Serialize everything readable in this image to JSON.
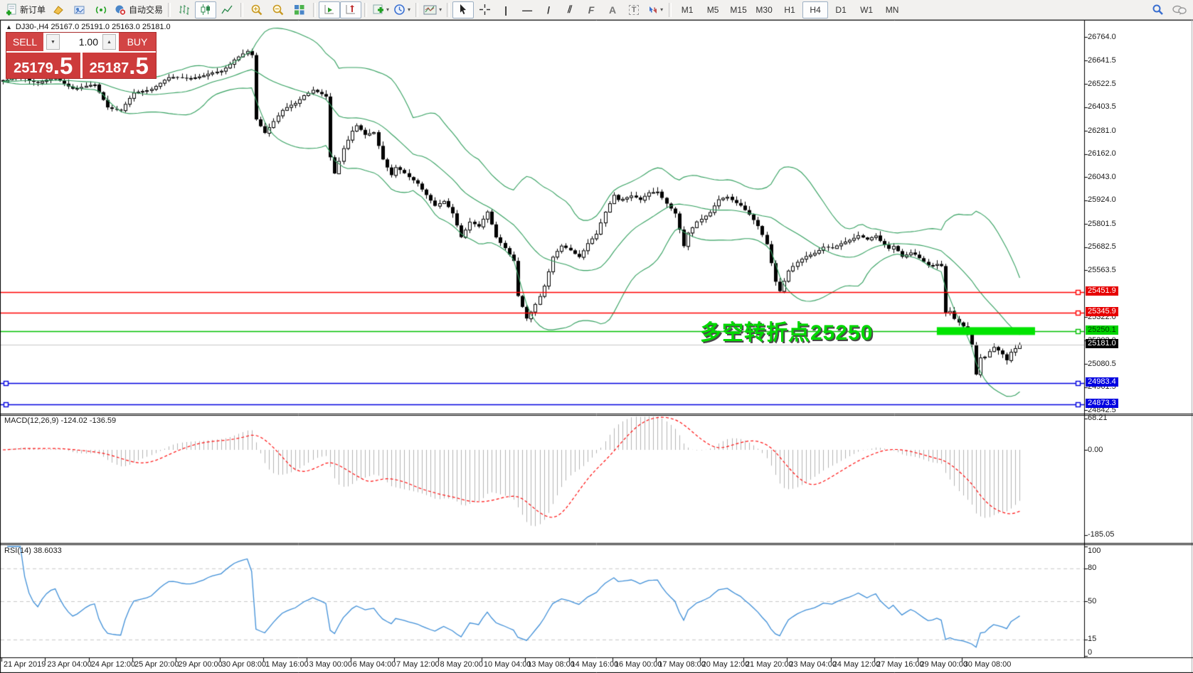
{
  "toolbar": {
    "new_order_label": "新订单",
    "auto_trading_label": "自动交易",
    "timeframes": [
      "M1",
      "M5",
      "M15",
      "M30",
      "H1",
      "H4",
      "D1",
      "W1",
      "MN"
    ],
    "active_timeframe": "H4",
    "glyph_vertical_line": "|",
    "glyph_horizontal_line": "—",
    "glyph_trendline": "/",
    "glyph_channel": "⫽",
    "glyph_fibo": "F",
    "glyph_text": "A",
    "glyph_text_label": "T"
  },
  "chart_header": {
    "collapse_icon": "▲",
    "title": "DJ30-,H4  25167.0 25191.0 25163.0 25181.0"
  },
  "trade_panel": {
    "sell_label": "SELL",
    "buy_label": "BUY",
    "volume": "1.00",
    "sell_price_main": "25179",
    "sell_price_big": ".5",
    "buy_price_main": "25187",
    "buy_price_big": ".5"
  },
  "annotation": {
    "text": "多空转折点25250"
  },
  "indicator_labels": {
    "macd": "MACD(12,26,9) -124.02 -136.59",
    "rsi": "RSI(14) 38.6033"
  },
  "chart_data": {
    "type": "candlestick",
    "symbol": "DJ30-",
    "timeframe": "H4",
    "title_ohlc": {
      "open": 25167.0,
      "high": 25191.0,
      "low": 25163.0,
      "close": 25181.0
    },
    "price_axis_ticks": [
      26764.0,
      26641.5,
      26522.5,
      26403.5,
      26281.0,
      26162.0,
      26043.0,
      25924.0,
      25801.5,
      25682.5,
      25563.5,
      25322.0,
      25202.0,
      25080.5,
      24961.5,
      24842.5
    ],
    "time_axis_labels": [
      "21 Apr 2019",
      "23 Apr 04:00",
      "24 Apr 12:00",
      "25 Apr 20:00",
      "29 Apr 00:00",
      "30 Apr 08:00",
      "1 May 16:00",
      "3 May 00:00",
      "6 May 04:00",
      "7 May 12:00",
      "8 May 20:00",
      "10 May 04:00",
      "13 May 08:00",
      "14 May 16:00",
      "16 May 00:00",
      "17 May 08:00",
      "20 May 12:00",
      "21 May 20:00",
      "23 May 04:00",
      "24 May 12:00",
      "27 May 16:00",
      "29 May 00:00",
      "30 May 08:00"
    ],
    "bars_per_time_label": 10,
    "bar_count": 234,
    "close_keypoints": [
      [
        0,
        26534
      ],
      [
        4,
        26552
      ],
      [
        8,
        26523
      ],
      [
        12,
        26545
      ],
      [
        16,
        26508
      ],
      [
        21,
        26523
      ],
      [
        24,
        26413
      ],
      [
        27,
        26387
      ],
      [
        30,
        26467
      ],
      [
        34,
        26493
      ],
      [
        38,
        26545
      ],
      [
        42,
        26560
      ],
      [
        46,
        26570
      ],
      [
        50,
        26600
      ],
      [
        53,
        26654
      ],
      [
        56,
        26683
      ],
      [
        57,
        26661
      ],
      [
        58,
        26332
      ],
      [
        60,
        26267
      ],
      [
        62,
        26325
      ],
      [
        64,
        26376
      ],
      [
        67,
        26420
      ],
      [
        69,
        26471
      ],
      [
        71,
        26500
      ],
      [
        74,
        26460
      ],
      [
        75,
        26149
      ],
      [
        76,
        26069
      ],
      [
        78,
        26204
      ],
      [
        80,
        26288
      ],
      [
        81,
        26310
      ],
      [
        83,
        26252
      ],
      [
        85,
        26267
      ],
      [
        87,
        26131
      ],
      [
        89,
        26047
      ],
      [
        90,
        26084
      ],
      [
        93,
        26033
      ],
      [
        95,
        26011
      ],
      [
        97,
        25959
      ],
      [
        99,
        25900
      ],
      [
        101,
        25922
      ],
      [
        103,
        25864
      ],
      [
        105,
        25747
      ],
      [
        107,
        25820
      ],
      [
        109,
        25784
      ],
      [
        111,
        25857
      ],
      [
        113,
        25729
      ],
      [
        115,
        25674
      ],
      [
        117,
        25601
      ],
      [
        118,
        25418
      ],
      [
        120,
        25305
      ],
      [
        121,
        25345
      ],
      [
        123,
        25436
      ],
      [
        124,
        25491
      ],
      [
        126,
        25637
      ],
      [
        128,
        25692
      ],
      [
        130,
        25674
      ],
      [
        132,
        25645
      ],
      [
        134,
        25710
      ],
      [
        136,
        25747
      ],
      [
        138,
        25857
      ],
      [
        140,
        25948
      ],
      [
        141,
        25923
      ],
      [
        144,
        25937
      ],
      [
        146,
        25912
      ],
      [
        148,
        25959
      ],
      [
        150,
        25973
      ],
      [
        152,
        25912
      ],
      [
        154,
        25857
      ],
      [
        156,
        25692
      ],
      [
        157,
        25765
      ],
      [
        159,
        25828
      ],
      [
        162,
        25864
      ],
      [
        164,
        25922
      ],
      [
        166,
        25937
      ],
      [
        169,
        25893
      ],
      [
        171,
        25839
      ],
      [
        173,
        25777
      ],
      [
        175,
        25692
      ],
      [
        177,
        25509
      ],
      [
        178,
        25462
      ],
      [
        180,
        25564
      ],
      [
        182,
        25608
      ],
      [
        184,
        25645
      ],
      [
        186,
        25667
      ],
      [
        188,
        25692
      ],
      [
        190,
        25674
      ],
      [
        192,
        25696
      ],
      [
        194,
        25718
      ],
      [
        196,
        25740
      ],
      [
        198,
        25710
      ],
      [
        200,
        25728
      ],
      [
        201,
        25703
      ],
      [
        203,
        25674
      ],
      [
        204,
        25692
      ],
      [
        205,
        25667
      ],
      [
        206,
        25637
      ],
      [
        208,
        25655
      ],
      [
        209,
        25645
      ],
      [
        210,
        25630
      ],
      [
        212,
        25601
      ],
      [
        214,
        25608
      ],
      [
        215,
        25593
      ],
      [
        216,
        25348
      ],
      [
        217,
        25351
      ],
      [
        218,
        25308
      ],
      [
        220,
        25272
      ],
      [
        221,
        25235
      ],
      [
        222,
        25180
      ],
      [
        223,
        25024
      ],
      [
        224,
        25107
      ],
      [
        225,
        25107
      ],
      [
        226,
        25132
      ],
      [
        227,
        25154
      ],
      [
        229,
        25125
      ],
      [
        230,
        25100
      ],
      [
        231,
        25143
      ],
      [
        232,
        25162
      ],
      [
        233,
        25181
      ]
    ],
    "price_min": 24985,
    "price_max": 26703,
    "levels": [
      {
        "price": 25451.9,
        "label": "25451.9",
        "color": "#ff0000",
        "label_bg": "#e60000",
        "label_fg": "#ffffff",
        "handles": [
          "right"
        ]
      },
      {
        "price": 25345.9,
        "label": "25345.9",
        "color": "#ff0000",
        "label_bg": "#e60000",
        "label_fg": "#ffffff",
        "handles": [
          "right"
        ]
      },
      {
        "price": 25250.1,
        "label": "25250.1",
        "color": "#00c000",
        "label_bg": "#00d400",
        "label_fg": "#004000",
        "handles": [
          "right"
        ]
      },
      {
        "price": 24983.4,
        "label": "24983.4",
        "color": "#0000e0",
        "label_bg": "#0000e0",
        "label_fg": "#ffffff",
        "handles": [
          "left",
          "right"
        ]
      },
      {
        "price": 24873.3,
        "label": "24873.3",
        "color": "#0000e0",
        "label_bg": "#0000e0",
        "label_fg": "#ffffff",
        "handles": [
          "left",
          "right"
        ]
      }
    ],
    "current_price": {
      "value": 25181.0,
      "label": "25181.0",
      "line_color": "#c8c8c8",
      "label_bg": "#000000",
      "label_fg": "#ffffff"
    },
    "highlight": {
      "price": 25250.1,
      "bar_start": 214,
      "bar_end": 236.5,
      "color": "#00e400",
      "thickness": 11
    },
    "indicators": {
      "bollinger": {
        "period": 20,
        "deviation": 2,
        "color": "#33a05f"
      },
      "macd": {
        "params": "12,26,9",
        "value": -124.02,
        "signal": -136.59,
        "axis_ticks": [
          "68.21",
          "0.00",
          "-185.05"
        ],
        "axis_values": [
          68.21,
          0,
          -185.05
        ],
        "histogram_color": "#b4b4b4",
        "signal_color": "#ff1010"
      },
      "rsi": {
        "period": 14,
        "value": 38.6033,
        "levels": [
          80,
          50,
          15
        ],
        "axis_ticks": [
          "100",
          "80",
          "50",
          "15",
          "0"
        ],
        "axis_values": [
          100,
          80,
          50,
          15,
          0
        ],
        "color": "#3f8fd8",
        "level_color": "#c8c8c8"
      }
    }
  }
}
